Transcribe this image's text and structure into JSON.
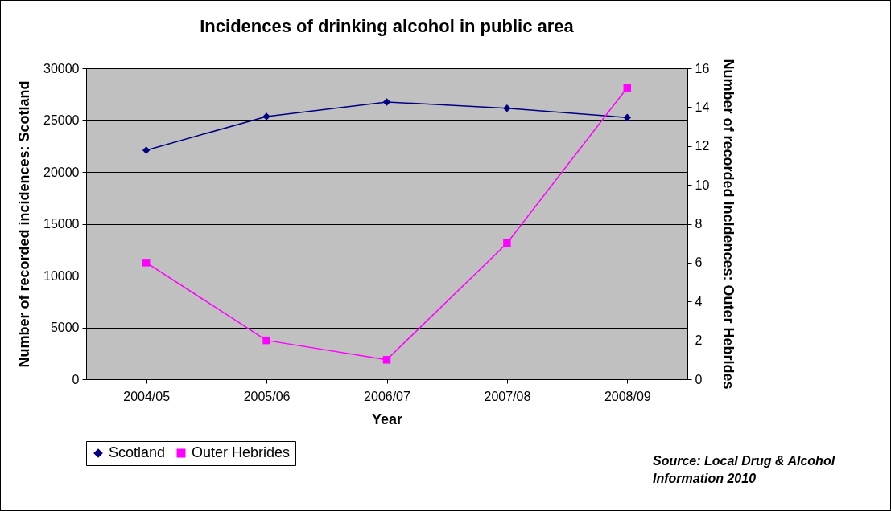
{
  "chart_data": {
    "type": "line",
    "title": "Incidences of drinking alcohol in public area",
    "xlabel": "Year",
    "ylabel": "Number of recorded incidences: Scotland",
    "y2label": "Number of recorded incidences: Outer Hebrides",
    "categories": [
      "2004/05",
      "2005/06",
      "2006/07",
      "2007/08",
      "2008/09"
    ],
    "series": [
      {
        "name": "Scotland",
        "color": "#000080",
        "marker": "diamond",
        "values": [
          22100,
          25350,
          26750,
          26150,
          25250
        ]
      },
      {
        "name": "Outer Hebrides",
        "color": "#ff00ff",
        "marker": "square",
        "axis": "y2",
        "values": [
          6,
          2,
          1,
          7,
          15
        ]
      }
    ],
    "ylim": [
      0,
      30000
    ],
    "yticks": [
      0,
      5000,
      10000,
      15000,
      20000,
      25000,
      30000
    ],
    "y2lim": [
      0,
      16
    ],
    "y2ticks": [
      0,
      2,
      4,
      6,
      8,
      10,
      12,
      14,
      16
    ],
    "grid": "y",
    "legend": "bottom",
    "annotations": [
      "Source: Local Drug & Alcohol Information 2010"
    ]
  }
}
